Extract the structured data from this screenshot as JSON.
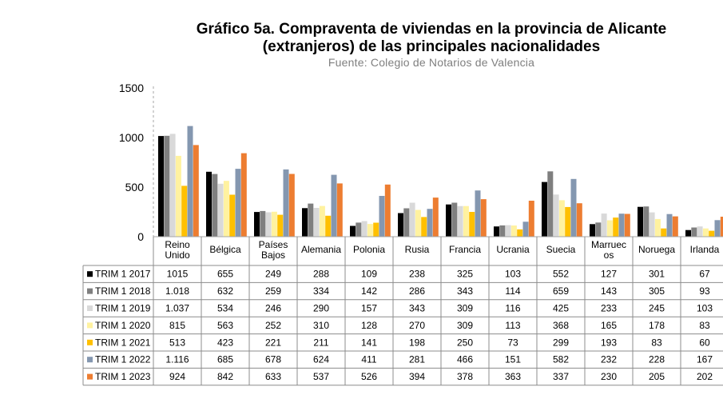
{
  "title_line1": "Gráfico 5a. Compraventa de viviendas en la provincia de Alicante",
  "title_line2": "(extranjeros) de las principales nacionalidades",
  "source": "Fuente: Colegio de Notarios de Valencia",
  "chart_data": {
    "type": "bar",
    "title": "Gráfico 5a. Compraventa de viviendas en la provincia de Alicante (extranjeros) de las principales nacionalidades",
    "subtitle": "Fuente: Colegio de Notarios de Valencia",
    "categories": [
      [
        "Reino",
        "Unido"
      ],
      [
        "Bélgica"
      ],
      [
        "Países",
        "Bajos"
      ],
      [
        "Alemania"
      ],
      [
        "Polonia"
      ],
      [
        "Rusia"
      ],
      [
        "Francia"
      ],
      [
        "Ucrania"
      ],
      [
        "Suecia"
      ],
      [
        "Marruec",
        "os"
      ],
      [
        "Noruega"
      ],
      [
        "Irlanda"
      ]
    ],
    "ylim": [
      0,
      1500
    ],
    "yticks": [
      0,
      500,
      1000,
      1500
    ],
    "legend_position": "table-left",
    "series": [
      {
        "name": "TRIM 1 2017",
        "color": "#000000",
        "values": [
          1015,
          655,
          249,
          288,
          109,
          238,
          325,
          103,
          552,
          127,
          301,
          67
        ],
        "labels": [
          "1015",
          "655",
          "249",
          "288",
          "109",
          "238",
          "325",
          "103",
          "552",
          "127",
          "301",
          "67"
        ]
      },
      {
        "name": "TRIM 1 2018",
        "color": "#7f7f7f",
        "values": [
          1018,
          632,
          259,
          334,
          142,
          286,
          343,
          114,
          659,
          143,
          305,
          93
        ],
        "labels": [
          "1.018",
          "632",
          "259",
          "334",
          "142",
          "286",
          "343",
          "114",
          "659",
          "143",
          "305",
          "93"
        ]
      },
      {
        "name": "TRIM 1 2019",
        "color": "#d9d9d9",
        "values": [
          1037,
          534,
          246,
          290,
          157,
          343,
          309,
          116,
          425,
          233,
          245,
          103
        ],
        "labels": [
          "1.037",
          "534",
          "246",
          "290",
          "157",
          "343",
          "309",
          "116",
          "425",
          "233",
          "245",
          "103"
        ]
      },
      {
        "name": "TRIM 1 2020",
        "color": "#fff2a0",
        "values": [
          815,
          563,
          252,
          310,
          128,
          270,
          309,
          113,
          368,
          165,
          178,
          83
        ],
        "labels": [
          "815",
          "563",
          "252",
          "310",
          "128",
          "270",
          "309",
          "113",
          "368",
          "165",
          "178",
          "83"
        ]
      },
      {
        "name": "TRIM 1 2021",
        "color": "#ffc000",
        "values": [
          513,
          423,
          221,
          211,
          141,
          198,
          250,
          73,
          299,
          193,
          83,
          60
        ],
        "labels": [
          "513",
          "423",
          "221",
          "211",
          "141",
          "198",
          "250",
          "73",
          "299",
          "193",
          "83",
          "60"
        ]
      },
      {
        "name": "TRIM 1 2022",
        "color": "#8497b0",
        "values": [
          1116,
          685,
          678,
          624,
          411,
          281,
          466,
          151,
          582,
          232,
          228,
          167
        ],
        "labels": [
          "1.116",
          "685",
          "678",
          "624",
          "411",
          "281",
          "466",
          "151",
          "582",
          "232",
          "228",
          "167"
        ]
      },
      {
        "name": "TRIM 1 2023",
        "color": "#ed7d31",
        "values": [
          924,
          842,
          633,
          537,
          526,
          394,
          378,
          363,
          337,
          230,
          205,
          202
        ],
        "labels": [
          "924",
          "842",
          "633",
          "537",
          "526",
          "394",
          "378",
          "363",
          "337",
          "230",
          "205",
          "202"
        ]
      }
    ]
  }
}
